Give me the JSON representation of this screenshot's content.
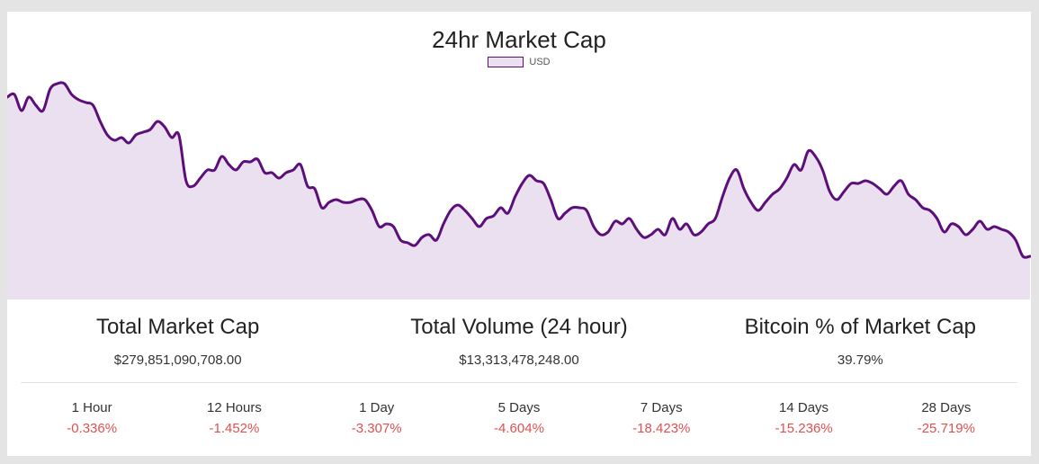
{
  "chart_data": {
    "type": "area",
    "title": "24hr Market Cap",
    "xlabel": "",
    "ylabel": "",
    "legend": [
      "USD"
    ],
    "legend_position": "top-center",
    "grid": false,
    "line_color": "#5c0e7a",
    "fill_color": "#ebe0f0",
    "ylim": [
      0,
      100
    ],
    "x": [
      0,
      1,
      2,
      3,
      4,
      5,
      6,
      7,
      8,
      9,
      10,
      11,
      12,
      13,
      14,
      15,
      16,
      17,
      18,
      19,
      20,
      21,
      22,
      23,
      24,
      25,
      26,
      27,
      28,
      29,
      30,
      31,
      32,
      33,
      34,
      35,
      36,
      37,
      38,
      39,
      40,
      41,
      42,
      43,
      44,
      45,
      46,
      47,
      48,
      49,
      50,
      51,
      52,
      53,
      54,
      55,
      56,
      57,
      58,
      59,
      60,
      61,
      62,
      63,
      64,
      65,
      66,
      67,
      68,
      69,
      70,
      71,
      72,
      73,
      74,
      75,
      76,
      77,
      78,
      79,
      80,
      81,
      82,
      83,
      84,
      85,
      86,
      87,
      88,
      89,
      90,
      91,
      92,
      93,
      94,
      95,
      96,
      97,
      98,
      99,
      100,
      101,
      102,
      103,
      104,
      105,
      106,
      107,
      108,
      109,
      110,
      111,
      112,
      113,
      114,
      115,
      116,
      117,
      118,
      119,
      120,
      121,
      122,
      123,
      124,
      125,
      126,
      127,
      128,
      129,
      130,
      131,
      132,
      133,
      134,
      135,
      136,
      137,
      138,
      139,
      140,
      141,
      142,
      143
    ],
    "series": [
      {
        "name": "USD",
        "values": [
          75,
          76,
          70,
          75,
          72,
          70,
          78,
          80,
          80,
          76,
          74,
          73,
          72,
          66,
          61,
          59,
          60,
          58,
          61,
          62,
          63,
          66,
          64,
          60,
          61,
          44,
          42,
          45,
          48,
          48,
          53,
          50,
          48,
          51,
          51,
          52,
          47,
          47,
          45,
          47,
          48,
          50,
          42,
          41,
          34,
          36,
          37,
          36,
          36,
          37,
          37,
          33,
          27,
          28,
          27,
          22,
          21,
          20,
          23,
          24,
          22,
          28,
          33,
          35,
          33,
          30,
          27,
          30,
          31,
          34,
          32,
          38,
          43,
          46,
          44,
          43,
          37,
          30,
          32,
          34,
          34,
          33,
          27,
          24,
          25,
          29,
          28,
          30,
          26,
          23,
          24,
          26,
          24,
          30,
          26,
          28,
          24,
          25,
          28,
          30,
          38,
          45,
          48,
          41,
          36,
          33,
          36,
          39,
          41,
          45,
          50,
          48,
          55,
          53,
          48,
          40,
          37,
          40,
          43,
          43,
          44,
          43,
          41,
          39,
          42,
          44,
          39,
          37,
          34,
          33,
          30,
          25,
          28,
          27,
          24,
          26,
          29,
          26,
          27,
          26,
          25,
          22,
          16,
          16
        ]
      }
    ]
  },
  "stats": [
    {
      "label": "Total Market Cap",
      "value": "$279,851,090,708.00"
    },
    {
      "label": "Total Volume (24 hour)",
      "value": "$13,313,478,248.00"
    },
    {
      "label": "Bitcoin % of Market Cap",
      "value": "39.79%"
    }
  ],
  "changes": [
    {
      "label": "1 Hour",
      "value": "-0.336%"
    },
    {
      "label": "12 Hours",
      "value": "-1.452%"
    },
    {
      "label": "1 Day",
      "value": "-3.307%"
    },
    {
      "label": "5 Days",
      "value": "-4.604%"
    },
    {
      "label": "7 Days",
      "value": "-18.423%"
    },
    {
      "label": "14 Days",
      "value": "-15.236%"
    },
    {
      "label": "28 Days",
      "value": "-25.719%"
    }
  ]
}
